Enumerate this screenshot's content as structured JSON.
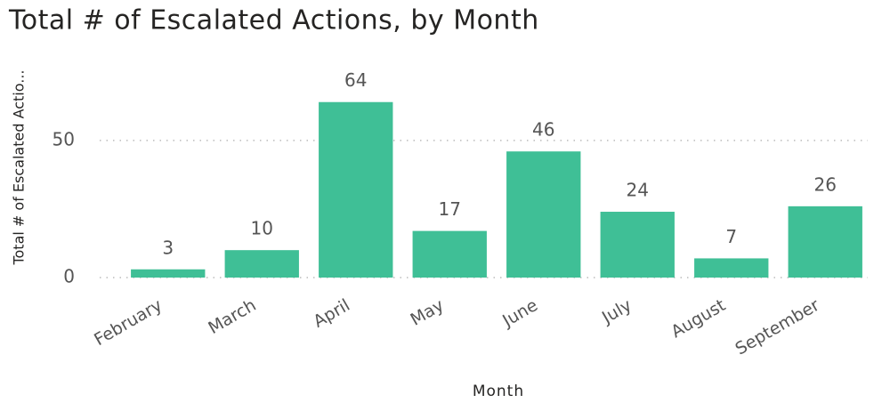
{
  "chart_data": {
    "type": "bar",
    "title": "Total # of Escalated Actions, by Month",
    "x_label": "Month",
    "y_label": "Total # of Escalated Actio...",
    "categories": [
      "February",
      "March",
      "April",
      "May",
      "June",
      "July",
      "August",
      "September"
    ],
    "values": [
      3,
      10,
      64,
      17,
      46,
      24,
      7,
      26
    ],
    "color": "#3fbf96",
    "ylim": [
      0,
      73
    ],
    "yticks": [
      0,
      50
    ],
    "grid": true
  }
}
